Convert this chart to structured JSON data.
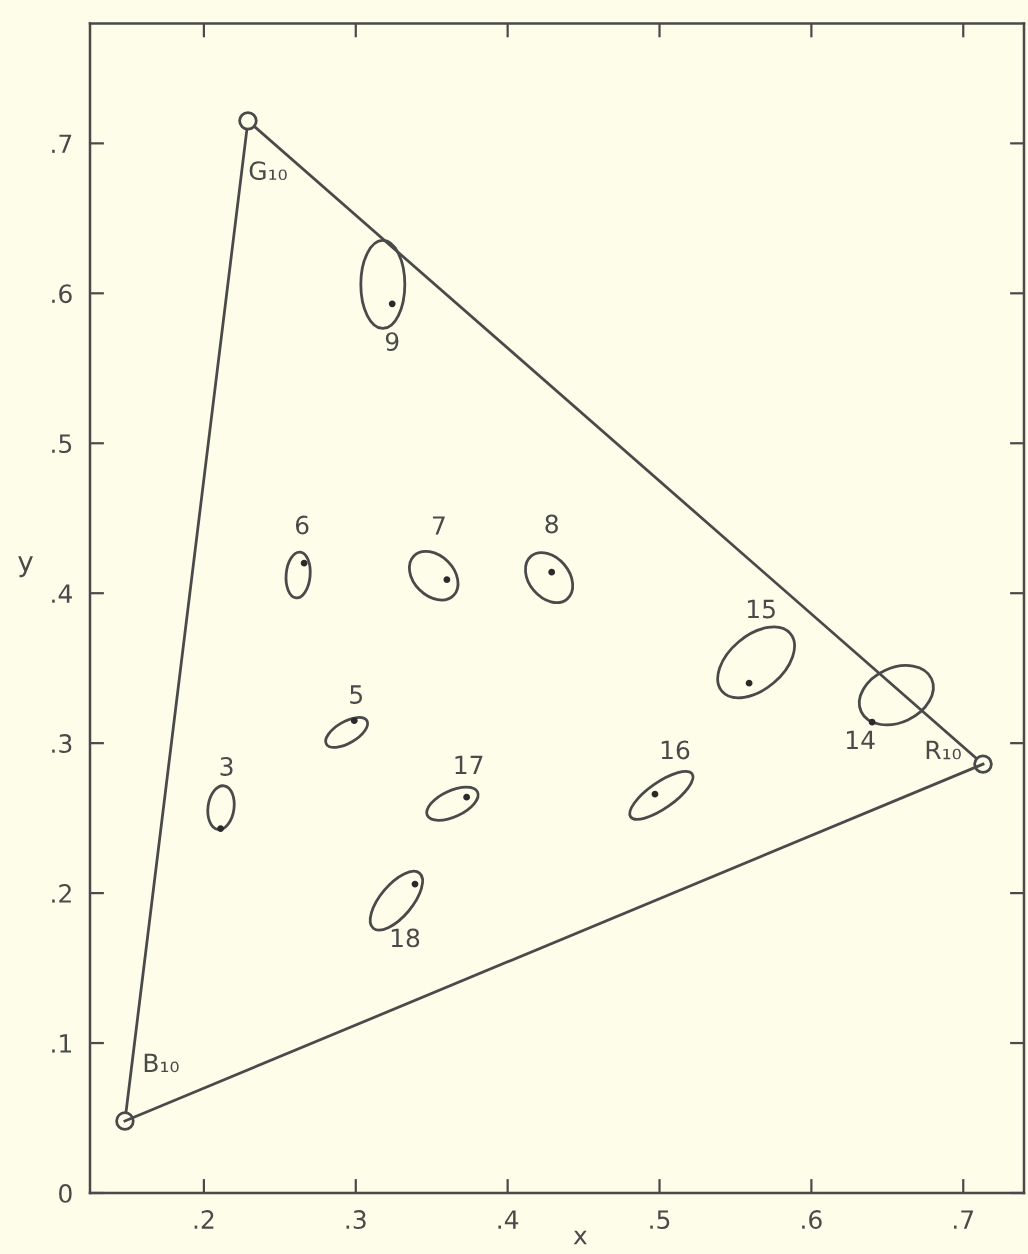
{
  "chart_data": {
    "type": "scatter",
    "xlabel": "x",
    "ylabel": "y",
    "xlim": [
      0.125,
      0.74
    ],
    "ylim": [
      0,
      0.78
    ],
    "xticks": [
      {
        "value": 0.2,
        "label": ".2"
      },
      {
        "value": 0.3,
        "label": ".3"
      },
      {
        "value": 0.4,
        "label": ".4"
      },
      {
        "value": 0.5,
        "label": ".5"
      },
      {
        "value": 0.6,
        "label": ".6"
      },
      {
        "value": 0.7,
        "label": ".7"
      }
    ],
    "yticks": [
      0,
      {
        "value": 0.1,
        "label": ".1"
      },
      {
        "value": 0.2,
        "label": ".2"
      },
      {
        "value": 0.3,
        "label": ".3"
      },
      {
        "value": 0.4,
        "label": ".4"
      },
      {
        "value": 0.5,
        "label": ".5"
      },
      {
        "value": 0.6,
        "label": ".6"
      },
      {
        "value": 0.7,
        "label": ".7"
      }
    ],
    "series": [
      {
        "type": "line",
        "color": "#4a4a4a",
        "marker": "circle",
        "x": [
          0.148,
          0.229,
          0.713
        ],
        "values": [
          0.048,
          0.715,
          0.286
        ]
      },
      {
        "type": "line",
        "color": "#4a4a4a",
        "marker": "none",
        "x": [
          0.148,
          0.713
        ],
        "values": [
          0.048,
          0.286
        ]
      },
      {
        "color": "#2a2a2a",
        "marker": "circle",
        "x": [
          0.324,
          0.266,
          0.36,
          0.429,
          0.299,
          0.211,
          0.373,
          0.497,
          0.559,
          0.64,
          0.339
        ],
        "values": [
          0.593,
          0.42,
          0.409,
          0.414,
          0.315,
          0.243,
          0.264,
          0.266,
          0.34,
          0.314,
          0.206
        ]
      }
    ],
    "annotations": [
      {
        "text": "G₁₀",
        "x": 0.229,
        "y": 0.715
      },
      {
        "text": "R₁₀",
        "x": 0.713,
        "y": 0.286
      },
      {
        "text": "B₁₀",
        "x": 0.148,
        "y": 0.048
      },
      {
        "text": "9",
        "x": 0.324,
        "y": 0.593
      },
      {
        "text": "6",
        "x": 0.266,
        "y": 0.42
      },
      {
        "text": "7",
        "x": 0.36,
        "y": 0.409
      },
      {
        "text": "8",
        "x": 0.429,
        "y": 0.414
      },
      {
        "text": "5",
        "x": 0.299,
        "y": 0.315
      },
      {
        "text": "3",
        "x": 0.211,
        "y": 0.243
      },
      {
        "text": "17",
        "x": 0.373,
        "y": 0.264
      },
      {
        "text": "16",
        "x": 0.497,
        "y": 0.266
      },
      {
        "text": "15",
        "x": 0.559,
        "y": 0.34
      },
      {
        "text": "14",
        "x": 0.64,
        "y": 0.314
      },
      {
        "text": "18",
        "x": 0.339,
        "y": 0.206
      }
    ]
  }
}
